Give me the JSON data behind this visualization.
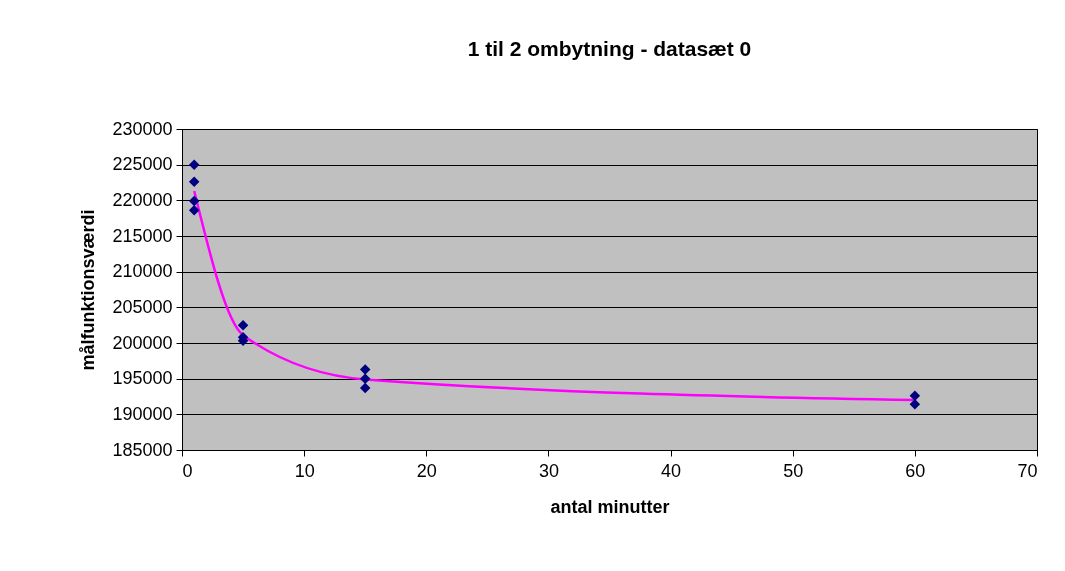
{
  "chart_data": {
    "type": "scatter",
    "title": "1 til 2 ombytning - datasæt 0",
    "xlabel": "antal minutter",
    "ylabel": "målfunktionsværdi",
    "xlim": [
      0,
      70
    ],
    "xticks": [
      0,
      10,
      20,
      30,
      40,
      50,
      60,
      70
    ],
    "ylim": [
      185000,
      230000
    ],
    "yticks": [
      185000,
      190000,
      195000,
      200000,
      205000,
      210000,
      215000,
      220000,
      225000,
      230000
    ],
    "grid": "y",
    "marker": "diamond",
    "series": [
      {
        "type": "scatter",
        "color": "#000080",
        "x": [
          1,
          1,
          1,
          1,
          5,
          5,
          5,
          15,
          15,
          15,
          60,
          60
        ],
        "values": [
          225000,
          222600,
          219900,
          218600,
          202500,
          200800,
          200300,
          196300,
          195000,
          193700,
          192600,
          191400
        ]
      },
      {
        "type": "line",
        "color": "#ff00ff",
        "marker": "none",
        "x": [
          1,
          5,
          15,
          60
        ],
        "values": [
          221300,
          201100,
          194900,
          192000
        ]
      }
    ]
  }
}
